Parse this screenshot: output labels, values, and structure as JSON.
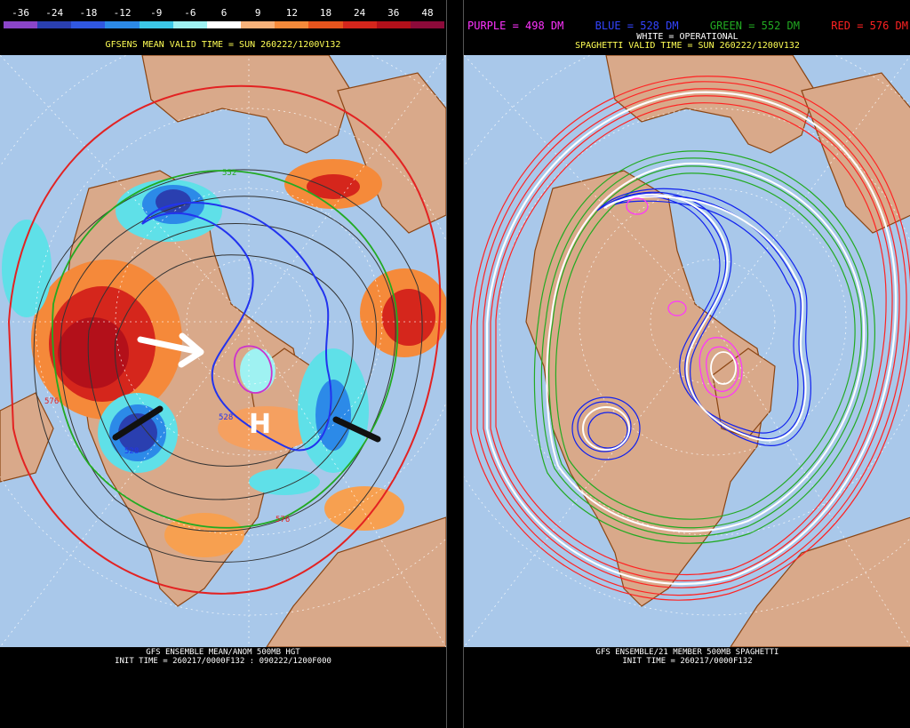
{
  "left": {
    "scale_labels": [
      "-36",
      "-24",
      "-18",
      "-12",
      "-9",
      "-6",
      "6",
      "9",
      "12",
      "18",
      "24",
      "36",
      "48"
    ],
    "scale_colors": [
      "#8b45c9",
      "#2a3fb0",
      "#3057e0",
      "#2c8ae8",
      "#3cc8e8",
      "#9ff2f2",
      "#ffffff",
      "#f7b27a",
      "#f58a3a",
      "#e8541d",
      "#d5261c",
      "#b3101a",
      "#8c0a3a"
    ],
    "header": "GFSENS MEAN VALID TIME = SUN 260222/1200V132",
    "contour_labels": [
      "552",
      "576",
      "528",
      "528",
      "576"
    ],
    "annotation": "H",
    "footer_line1": "GFS ENSEMBLE MEAN/ANOM 500MB HGT",
    "footer_line2": "INIT TIME = 260217/0000F132 : 090222/1200F000"
  },
  "right": {
    "legend": [
      {
        "text": "PURPLE = 498 DM",
        "color": "#ff33ff"
      },
      {
        "text": "BLUE = 528 DM",
        "color": "#3344ff"
      },
      {
        "text": "GREEN = 552 DM",
        "color": "#22aa22"
      },
      {
        "text": "RED = 576 DM",
        "color": "#ff2222"
      }
    ],
    "legend_line2": "WHITE = OPERATIONAL",
    "header": "SPAGHETTI VALID TIME = SUN 260222/1200V132",
    "footer_line1": "GFS ENSEMBLE/21 MEMBER 500MB SPAGHETTI",
    "footer_line2": "INIT TIME = 260217/0000F132"
  }
}
